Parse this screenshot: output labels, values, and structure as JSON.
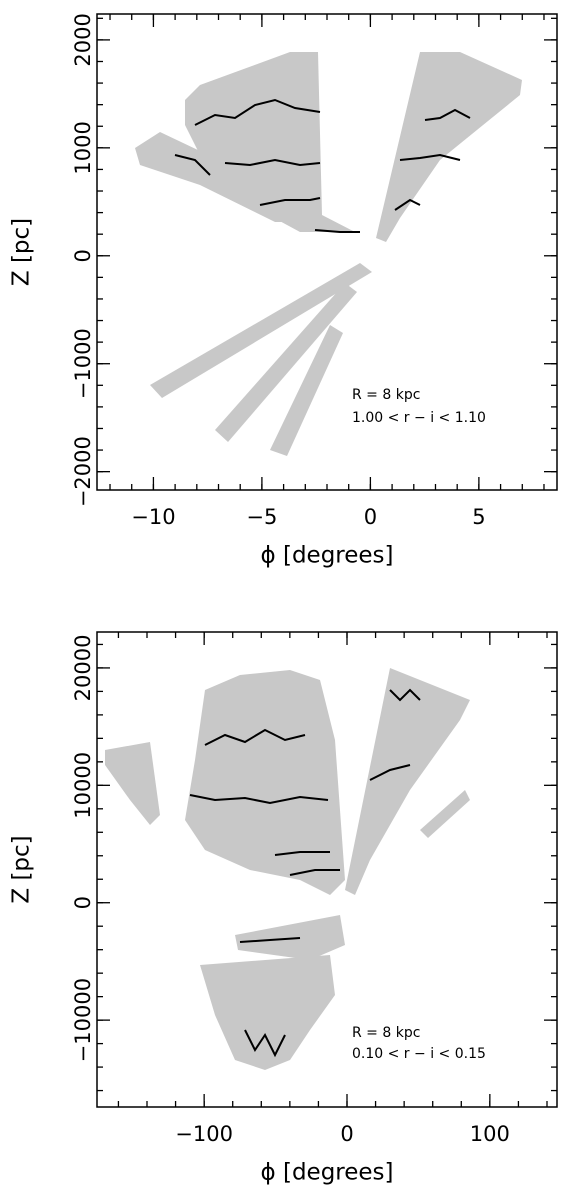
{
  "chart_data": [
    {
      "type": "contour",
      "xlabel": "ϕ [degrees]",
      "ylabel": "Z [pc]",
      "annotations": [
        "R = 8 kpc",
        "1.00 < r − i < 1.10"
      ],
      "xlim": [
        -12.6,
        8.6
      ],
      "xticks": [
        {
          "value": -10,
          "label": "−10"
        },
        {
          "value": -5,
          "label": "−5"
        },
        0,
        5
      ],
      "ylim": [
        -2170,
        2240
      ],
      "yticks": [
        {
          "value": -2000,
          "label": "−2000"
        },
        {
          "value": -1000,
          "label": "−1000"
        },
        0,
        1000,
        2000
      ]
    },
    {
      "type": "contour",
      "xlabel": "ϕ [degrees]",
      "ylabel": "Z [pc]",
      "annotations": [
        "R = 8 kpc",
        "0.10 < r − i < 0.15"
      ],
      "xlim": [
        -175,
        147
      ],
      "xticks": [
        {
          "value": -100,
          "label": "−100"
        },
        0,
        100
      ],
      "ylim": [
        -17400,
        23060
      ],
      "yticks": [
        {
          "value": -10000,
          "label": "−10000"
        },
        0,
        10000,
        20000
      ]
    }
  ]
}
